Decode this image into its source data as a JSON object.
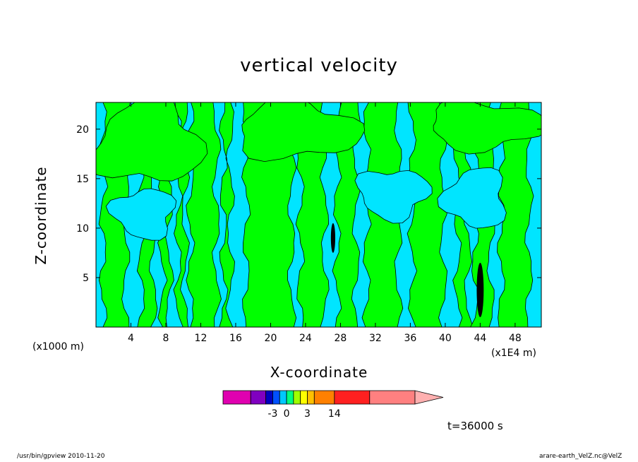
{
  "chart_data": {
    "type": "heatmap",
    "title": "vertical velocity",
    "xlabel": "X-coordinate",
    "ylabel": "Z-coordinate",
    "x_unit_left": "(x1000 m)",
    "x_unit_right": "(x1E4 m)",
    "x_ticks": [
      "4",
      "8",
      "12",
      "16",
      "20",
      "24",
      "28",
      "32",
      "36",
      "40",
      "44",
      "48"
    ],
    "x_tick_values": [
      4,
      8,
      12,
      16,
      20,
      24,
      28,
      32,
      36,
      40,
      44,
      48
    ],
    "xlim": [
      0,
      51
    ],
    "y_ticks": [
      "5",
      "10",
      "15",
      "20"
    ],
    "y_tick_values": [
      5,
      10,
      15,
      20
    ],
    "ylim": [
      0,
      22.7
    ],
    "colors": {
      "positive": "#00ff00",
      "negative": "#00e5ff",
      "strong": "#000000"
    },
    "colorbar": {
      "segment_colors": [
        "#e000b0",
        "#8000c0",
        "#0000c0",
        "#0050ff",
        "#00c8ff",
        "#00ff80",
        "#a0ff00",
        "#ffff00",
        "#ffc000",
        "#ff8000",
        "#ff2020",
        "#ff8080",
        "#ffb0b0"
      ],
      "labels": [
        "-3",
        "0",
        "3",
        "14"
      ],
      "label_values": [
        -3,
        0,
        3,
        14
      ]
    },
    "bands": [
      {
        "x": [
          0.8,
          3.4
        ],
        "value": 1
      },
      {
        "x": [
          5.2,
          6.6
        ],
        "value": 1
      },
      {
        "x": [
          7.6,
          8.4
        ],
        "value": 1
      },
      {
        "x": [
          9.4,
          10.2
        ],
        "value": 1
      },
      {
        "x": [
          10.8,
          13.8
        ],
        "value": 1
      },
      {
        "x": [
          14.6,
          15.4
        ],
        "value": 1
      },
      {
        "x": [
          17.2,
          22.4
        ],
        "value": 1
      },
      {
        "x": [
          23.4,
          26.2
        ],
        "value": 1
      },
      {
        "x": [
          27.6,
          29.8
        ],
        "value": 1
      },
      {
        "x": [
          31.0,
          34.6
        ],
        "value": 1
      },
      {
        "x": [
          36.2,
          39.8
        ],
        "value": 1
      },
      {
        "x": [
          41.4,
          42.6
        ],
        "value": 1
      },
      {
        "x": [
          43.4,
          45.2
        ],
        "value": 1
      },
      {
        "x": [
          46.4,
          49.6
        ],
        "value": 1
      }
    ],
    "patches": [
      {
        "x": [
          0,
          12
        ],
        "y": [
          14.5,
          22.7
        ],
        "value": 1
      },
      {
        "x": [
          16,
          30
        ],
        "y": [
          17,
          22.7
        ],
        "value": 1
      },
      {
        "x": [
          38,
          51
        ],
        "y": [
          18,
          22.7
        ],
        "value": 1
      },
      {
        "x": [
          30,
          38
        ],
        "y": [
          11,
          16
        ],
        "value": 0
      },
      {
        "x": [
          2,
          9
        ],
        "y": [
          9,
          14
        ],
        "value": 0
      },
      {
        "x": [
          40,
          47
        ],
        "y": [
          10,
          16
        ],
        "value": 0
      }
    ],
    "strong_cores": [
      {
        "x": [
          26.9,
          27.4
        ],
        "y": [
          7.5,
          10.5
        ]
      },
      {
        "x": [
          43.6,
          44.4
        ],
        "y": [
          1.0,
          6.5
        ]
      }
    ]
  },
  "time_label": "t=36000 s",
  "footer": {
    "left": "/usr/bin/gpview   2010-11-20",
    "right": "arare-earth_VelZ.nc@VelZ"
  }
}
